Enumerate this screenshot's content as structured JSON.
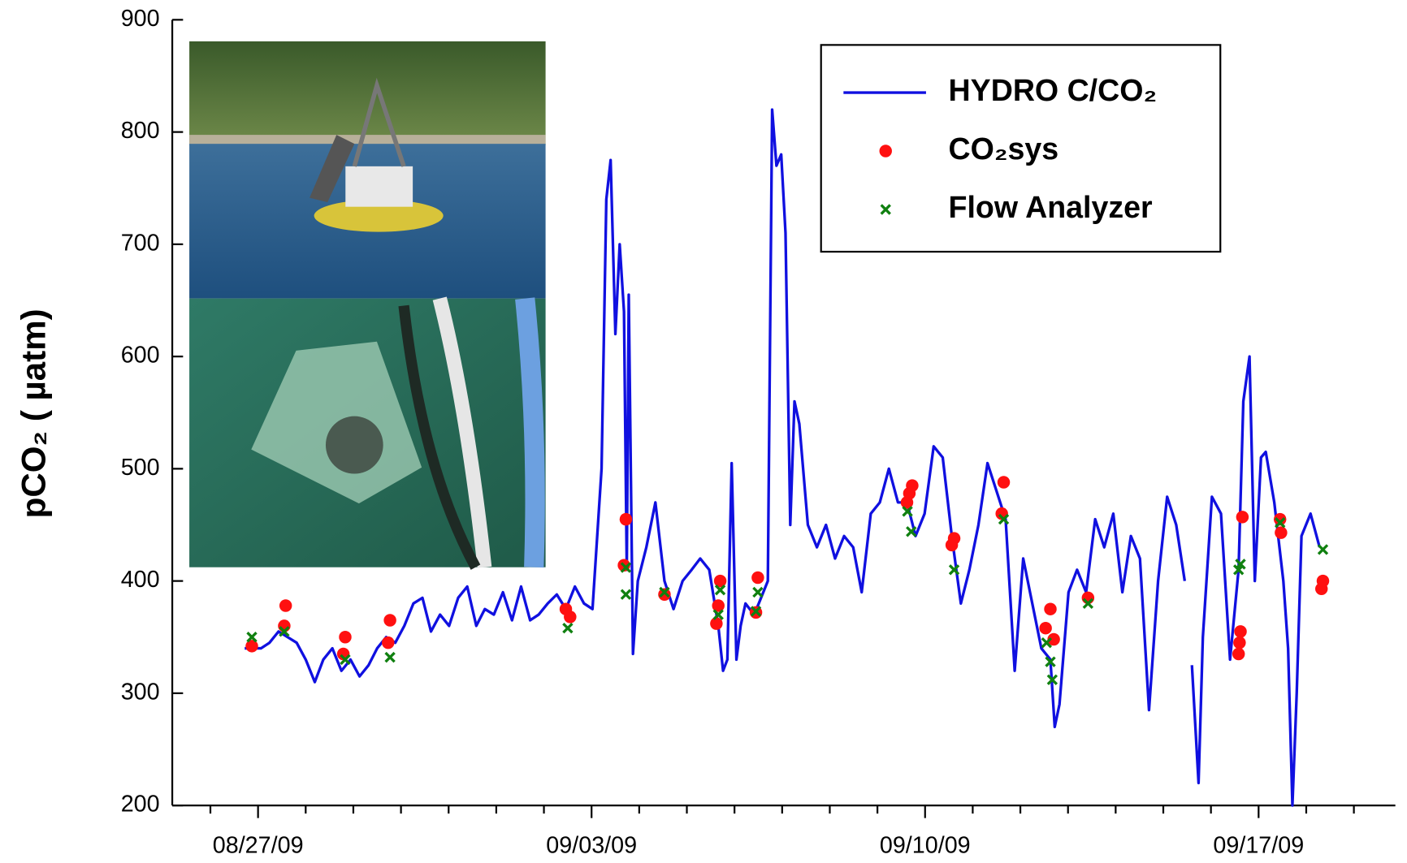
{
  "chart_data": {
    "type": "line",
    "y_label": "pCO₂ ( µatm)",
    "xlim": [
      237.2,
      262.87
    ],
    "ylim": [
      200,
      900
    ],
    "xticks": [
      {
        "value": 239,
        "label": "08/27/09"
      },
      {
        "value": 246,
        "label": "09/03/09"
      },
      {
        "value": 253,
        "label": "09/10/09"
      },
      {
        "value": 260,
        "label": "09/17/09"
      }
    ],
    "xminorticks": [
      238,
      240,
      241,
      242,
      243,
      244,
      245,
      247,
      248,
      249,
      250,
      251,
      252,
      254,
      255,
      256,
      257,
      258,
      259,
      261,
      262
    ],
    "yticks": [
      200,
      300,
      400,
      500,
      600,
      700,
      800,
      900
    ],
    "legend": "upper right",
    "series": [
      {
        "name": "HYDRO C/CO₂",
        "type": "line",
        "color": "#1010e0",
        "x": [
          238.72,
          239.06,
          239.24,
          239.43,
          239.62,
          239.81,
          240.0,
          240.19,
          240.37,
          240.56,
          240.75,
          240.94,
          241.13,
          241.32,
          241.5,
          241.69,
          241.88,
          242.07,
          242.26,
          242.45,
          242.63,
          242.82,
          243.01,
          243.2,
          243.39,
          243.58,
          243.76,
          243.95,
          244.14,
          244.33,
          244.52,
          244.71,
          244.89,
          245.08,
          245.27,
          245.46,
          245.65,
          245.84,
          246.02,
          246.21,
          246.31,
          246.4,
          246.5,
          246.59,
          246.68,
          246.74,
          246.78,
          246.87,
          246.97,
          247.15,
          247.34,
          247.53,
          247.72,
          247.91,
          248.1,
          248.28,
          248.47,
          248.66,
          248.76,
          248.85,
          248.94,
          249.04,
          249.13,
          249.23,
          249.41,
          249.51,
          249.7,
          249.79,
          249.88,
          249.98,
          250.07,
          250.17,
          250.26,
          250.36,
          250.54,
          250.73,
          250.92,
          251.11,
          251.3,
          251.49,
          251.67,
          251.86,
          252.05,
          252.24,
          252.43,
          252.62,
          252.8,
          252.99,
          253.18,
          253.37,
          253.56,
          253.75,
          253.93,
          254.12,
          254.31,
          254.5,
          254.69,
          254.88,
          255.06,
          255.25,
          255.44,
          255.63,
          255.72,
          255.82,
          256.01,
          256.19,
          256.38,
          256.57,
          256.76,
          256.95,
          257.14,
          257.32,
          257.51,
          257.7,
          257.89,
          258.08,
          258.27,
          258.45,
          258.52,
          258.6,
          258.74,
          258.83,
          259.02,
          259.21,
          259.4,
          259.58,
          259.68,
          259.81,
          259.92,
          260.05,
          260.15,
          260.33,
          260.52,
          260.62,
          260.71,
          260.8,
          260.9,
          261.09,
          261.28
        ],
        "values": [
          340,
          340,
          345,
          355,
          350,
          345,
          330,
          310,
          330,
          340,
          320,
          330,
          315,
          325,
          340,
          350,
          345,
          360,
          380,
          385,
          355,
          370,
          360,
          385,
          395,
          360,
          375,
          370,
          390,
          365,
          395,
          365,
          370,
          380,
          388,
          375,
          395,
          380,
          375,
          500,
          740,
          775,
          620,
          700,
          640,
          410,
          655,
          335,
          400,
          430,
          470,
          400,
          375,
          400,
          410,
          420,
          410,
          360,
          320,
          330,
          505,
          330,
          360,
          380,
          370,
          380,
          400,
          820,
          770,
          780,
          710,
          450,
          560,
          540,
          450,
          430,
          450,
          420,
          440,
          430,
          390,
          460,
          470,
          500,
          470,
          470,
          440,
          460,
          520,
          510,
          440,
          380,
          410,
          450,
          505,
          480,
          455,
          320,
          420,
          380,
          340,
          330,
          270,
          290,
          390,
          410,
          390,
          455,
          430,
          460,
          390,
          440,
          420,
          285,
          400,
          475,
          450,
          400,
          null,
          325,
          220,
          350,
          475,
          460,
          330,
          410,
          560,
          600,
          400,
          510,
          515,
          470,
          400,
          340,
          200,
          300,
          440,
          460,
          430
        ]
      },
      {
        "name": "CO₂sys",
        "type": "scatter",
        "color": "#ff1010",
        "x": [
          238.87,
          239.55,
          239.58,
          240.83,
          240.79,
          241.77,
          241.73,
          245.46,
          245.55,
          246.72,
          246.68,
          247.53,
          248.7,
          248.66,
          248.62,
          249.49,
          249.45,
          252.62,
          252.67,
          252.73,
          253.56,
          253.61,
          254.65,
          254.61,
          255.53,
          255.63,
          255.7,
          256.42,
          259.58,
          259.6,
          259.62,
          259.66,
          260.45,
          260.47,
          261.32,
          261.35
        ],
        "values": [
          342,
          360,
          378,
          350,
          335,
          365,
          345,
          375,
          368,
          455,
          414,
          388,
          400,
          378,
          362,
          403,
          372,
          470,
          478,
          485,
          432,
          438,
          488,
          460,
          358,
          375,
          348,
          385,
          335,
          345,
          355,
          457,
          455,
          443,
          393,
          400
        ]
      },
      {
        "name": "Flow Analyzer",
        "type": "scatter-x",
        "color": "#108010",
        "x": [
          238.87,
          239.55,
          240.83,
          241.77,
          245.5,
          246.72,
          246.72,
          247.53,
          248.7,
          248.66,
          249.49,
          249.45,
          252.63,
          252.71,
          253.61,
          254.65,
          255.55,
          255.63,
          255.67,
          256.42,
          259.58,
          259.62,
          260.45,
          261.35
        ],
        "values": [
          350,
          355,
          330,
          332,
          358,
          388,
          412,
          390,
          392,
          370,
          390,
          373,
          462,
          444,
          410,
          455,
          345,
          328,
          312,
          380,
          410,
          415,
          452,
          428
        ]
      }
    ]
  }
}
